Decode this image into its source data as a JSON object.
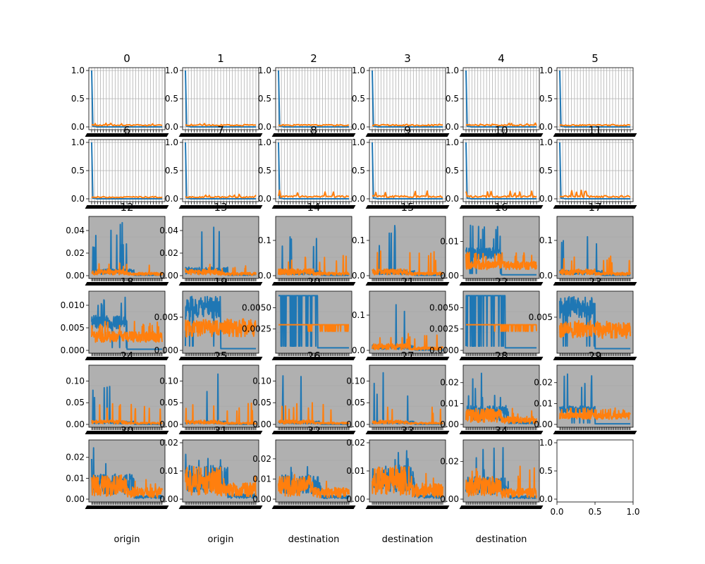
{
  "colors": {
    "series_1": "#1f77b4",
    "series_2": "#ff7f0e",
    "axes_face_gray": "#b0b0b0",
    "grid": "#b0b0b0",
    "text": "#000000"
  },
  "chart_data": {
    "type": "line",
    "layout": "6x6 grid of subplots",
    "subplots": [
      {
        "title": "0",
        "style": "grid-white",
        "ylim": [
          0,
          1
        ],
        "yticks": [
          "0.0",
          "0.5",
          "1.0"
        ],
        "shape": "spike-first",
        "s2_level": 0.03,
        "s2_peak": 0.07,
        "show_y": true
      },
      {
        "title": "1",
        "style": "grid-white",
        "ylim": [
          0,
          1
        ],
        "yticks": [
          "0.0",
          "0.5",
          "1.0"
        ],
        "shape": "spike-first",
        "s2_level": 0.03,
        "s2_peak": 0.06,
        "show_y": true
      },
      {
        "title": "2",
        "style": "grid-white",
        "ylim": [
          0,
          1
        ],
        "yticks": [
          "0.0",
          "0.5",
          "1.0"
        ],
        "shape": "spike-first",
        "s2_level": 0.03,
        "s2_peak": 0.05,
        "show_y": true
      },
      {
        "title": "3",
        "style": "grid-white",
        "ylim": [
          0,
          1
        ],
        "yticks": [
          "0.0",
          "0.5",
          "1.0"
        ],
        "shape": "spike-first",
        "s2_level": 0.03,
        "s2_peak": 0.05,
        "show_y": true
      },
      {
        "title": "4",
        "style": "grid-white",
        "ylim": [
          0,
          1
        ],
        "yticks": [
          "0.0",
          "0.5",
          "1.0"
        ],
        "shape": "spike-first",
        "s2_level": 0.03,
        "s2_peak": 0.07,
        "show_y": true
      },
      {
        "title": "5",
        "style": "grid-white",
        "ylim": [
          0,
          1
        ],
        "yticks": [
          "0.0",
          "0.5",
          "1.0"
        ],
        "shape": "spike-first",
        "s2_level": 0.03,
        "s2_peak": 0.04,
        "show_y": true
      },
      {
        "title": "6",
        "style": "grid-white",
        "ylim": [
          0,
          1
        ],
        "yticks": [
          "0.0",
          "0.5",
          "1.0"
        ],
        "shape": "spike-first",
        "s2_level": 0.03,
        "s2_peak": 0.04,
        "show_y": true
      },
      {
        "title": "7",
        "style": "grid-white",
        "ylim": [
          0,
          1
        ],
        "yticks": [
          "0.0",
          "0.5",
          "1.0"
        ],
        "shape": "spike-first",
        "s2_level": 0.03,
        "s2_peak": 0.08,
        "show_y": true
      },
      {
        "title": "8",
        "style": "grid-white",
        "ylim": [
          0,
          1
        ],
        "yticks": [
          "0.0",
          "0.5",
          "1.0"
        ],
        "shape": "spike-first",
        "s2_level": 0.04,
        "s2_peak": 0.15,
        "show_y": true
      },
      {
        "title": "9",
        "style": "grid-white",
        "ylim": [
          0,
          1
        ],
        "yticks": [
          "0.0",
          "0.5",
          "1.0"
        ],
        "shape": "spike-first",
        "s2_level": 0.04,
        "s2_peak": 0.14,
        "show_y": true
      },
      {
        "title": "10",
        "style": "grid-white",
        "ylim": [
          0,
          1
        ],
        "yticks": [
          "0.0",
          "0.5",
          "1.0"
        ],
        "shape": "spike-first",
        "s2_level": 0.04,
        "s2_peak": 0.14,
        "show_y": true
      },
      {
        "title": "11",
        "style": "grid-white",
        "ylim": [
          0,
          1
        ],
        "yticks": [
          "0.0",
          "0.5",
          "1.0"
        ],
        "shape": "spike-first",
        "s2_level": 0.04,
        "s2_peak": 0.16,
        "show_y": true
      },
      {
        "title": "12",
        "style": "gray",
        "ylim": [
          0,
          0.05
        ],
        "yticks": [
          "0.00",
          "0.02",
          "0.04"
        ],
        "shape": "noisy-spiky",
        "s1_level": 0.004,
        "s1_peak": 0.05,
        "s2_level": 0.003,
        "s2_peak": 0.012,
        "show_y": true
      },
      {
        "title": "13",
        "style": "gray",
        "ylim": [
          0,
          0.05
        ],
        "yticks": [
          "0.00",
          "0.02",
          "0.04"
        ],
        "shape": "noisy-spiky",
        "s1_level": 0.005,
        "s1_peak": 0.05,
        "s2_level": 0.003,
        "s2_peak": 0.01,
        "show_y": true
      },
      {
        "title": "14",
        "style": "gray",
        "ylim": [
          0,
          0.16
        ],
        "yticks": [
          "0.0",
          "0.1"
        ],
        "shape": "noisy-spiky",
        "s1_level": 0.01,
        "s1_peak": 0.15,
        "s2_level": 0.01,
        "s2_peak": 0.06,
        "show_y": true
      },
      {
        "title": "15",
        "style": "gray",
        "ylim": [
          0,
          0.16
        ],
        "yticks": [
          "0.0",
          "0.1"
        ],
        "shape": "noisy-spiky",
        "s1_level": 0.01,
        "s1_peak": 0.15,
        "s2_level": 0.01,
        "s2_peak": 0.07,
        "show_y": true
      },
      {
        "title": "16",
        "style": "gray",
        "ylim": [
          0,
          0.0165
        ],
        "yticks": [
          "0.00",
          "0.01"
        ],
        "shape": "band-drop",
        "s1_level": 0.0065,
        "s1_peak": 0.015,
        "s2_level": 0.003,
        "s2_peak": 0.007,
        "show_y": true
      },
      {
        "title": "17",
        "style": "gray",
        "ylim": [
          0,
          0.16
        ],
        "yticks": [
          "0.0",
          "0.1"
        ],
        "shape": "noisy-spiky",
        "s1_level": 0.01,
        "s1_peak": 0.15,
        "s2_level": 0.01,
        "s2_peak": 0.06,
        "show_y": true
      },
      {
        "title": "18",
        "style": "gray",
        "ylim": [
          0,
          0.0125
        ],
        "yticks": [
          "0.000",
          "0.005",
          "0.010"
        ],
        "shape": "band-drop",
        "s1_level": 0.0062,
        "s1_peak": 0.012,
        "s2_level": 0.003,
        "s2_peak": 0.0065,
        "show_y": true
      },
      {
        "title": "19",
        "style": "gray",
        "ylim": [
          0,
          0.0085
        ],
        "yticks": [
          "0.000",
          "0.005"
        ],
        "shape": "band-drop",
        "s1_level": 0.0065,
        "s1_peak": 0.0075,
        "s2_level": 0.0034,
        "s2_peak": 0.0045,
        "show_y": true
      },
      {
        "title": "20",
        "style": "gray",
        "ylim": [
          0,
          0.0066
        ],
        "yticks": [
          "0.0025",
          "0.0050"
        ],
        "shape": "step",
        "s1_level": 0.0064,
        "s1_peak": 0.0064,
        "s2_level": 0.003,
        "s2_peak": 0.003,
        "show_y": true
      },
      {
        "title": "21",
        "style": "gray",
        "ylim": [
          0,
          0.16
        ],
        "yticks": [
          "0.0",
          "0.1"
        ],
        "shape": "noisy-spiky",
        "s1_level": 0.01,
        "s1_peak": 0.15,
        "s2_level": 0.01,
        "s2_peak": 0.05,
        "show_y": true
      },
      {
        "title": "22",
        "style": "gray",
        "ylim": [
          0,
          0.0066
        ],
        "yticks": [
          "0.0000",
          "0.0025",
          "0.0050"
        ],
        "shape": "step",
        "s1_level": 0.0064,
        "s1_peak": 0.0064,
        "s2_level": 0.003,
        "s2_peak": 0.003,
        "show_y": true
      },
      {
        "title": "23",
        "style": "gray",
        "ylim": [
          0,
          0.0085
        ],
        "yticks": [
          "0.005"
        ],
        "shape": "band-drop",
        "s1_level": 0.0065,
        "s1_peak": 0.008,
        "s2_level": 0.003,
        "s2_peak": 0.0045,
        "show_y": true
      },
      {
        "title": "24",
        "style": "gray",
        "ylim": [
          0,
          0.13
        ],
        "yticks": [
          "0.00",
          "0.05",
          "0.10"
        ],
        "shape": "noisy-spiky",
        "s1_level": 0.005,
        "s1_peak": 0.12,
        "s2_level": 0.005,
        "s2_peak": 0.05,
        "show_y": true
      },
      {
        "title": "25",
        "style": "gray",
        "ylim": [
          0,
          0.13
        ],
        "yticks": [
          "0.00",
          "0.05",
          "0.10"
        ],
        "shape": "noisy-spiky",
        "s1_level": 0.005,
        "s1_peak": 0.12,
        "s2_level": 0.005,
        "s2_peak": 0.05,
        "show_y": true
      },
      {
        "title": "26",
        "style": "gray",
        "ylim": [
          0,
          0.13
        ],
        "yticks": [
          "0.00",
          "0.05",
          "0.10"
        ],
        "shape": "noisy-spiky",
        "s1_level": 0.005,
        "s1_peak": 0.12,
        "s2_level": 0.005,
        "s2_peak": 0.05,
        "show_y": true
      },
      {
        "title": "27",
        "style": "gray",
        "ylim": [
          0,
          0.13
        ],
        "yticks": [
          "0.00",
          "0.05",
          "0.10"
        ],
        "shape": "noisy-spiky",
        "s1_level": 0.005,
        "s1_peak": 0.12,
        "s2_level": 0.005,
        "s2_peak": 0.04,
        "show_y": true
      },
      {
        "title": "28",
        "style": "gray",
        "ylim": [
          0,
          0.027
        ],
        "yticks": [
          "0.00",
          "0.01",
          "0.02"
        ],
        "shape": "noisy-spiky",
        "s1_level": 0.006,
        "s1_peak": 0.025,
        "s2_level": 0.004,
        "s2_peak": 0.008,
        "show_y": true
      },
      {
        "title": "29",
        "style": "gray",
        "ylim": [
          0,
          0.027
        ],
        "yticks": [
          "0.00",
          "0.01",
          "0.02"
        ],
        "shape": "band-drop",
        "s1_level": 0.007,
        "s1_peak": 0.025,
        "s2_level": 0.004,
        "s2_peak": 0.008,
        "show_y": true
      },
      {
        "title": "30",
        "style": "gray",
        "ylim": [
          0,
          0.027
        ],
        "yticks": [
          "0.00",
          "0.01",
          "0.02"
        ],
        "shape": "noisy-spiky",
        "s1_level": 0.008,
        "s1_peak": 0.025,
        "s2_level": 0.006,
        "s2_peak": 0.01,
        "show_y": true
      },
      {
        "title": "31",
        "style": "gray",
        "ylim": [
          0,
          0.02
        ],
        "yticks": [
          "0.00",
          "0.01",
          "0.02"
        ],
        "shape": "noisy-spiky",
        "s1_level": 0.008,
        "s1_peak": 0.016,
        "s2_level": 0.006,
        "s2_peak": 0.012,
        "show_y": true
      },
      {
        "title": "32",
        "style": "gray",
        "ylim": [
          0,
          0.028
        ],
        "yticks": [
          "0.00",
          "0.01",
          "0.02"
        ],
        "shape": "noisy-spiky",
        "s1_level": 0.008,
        "s1_peak": 0.026,
        "s2_level": 0.006,
        "s2_peak": 0.014,
        "show_y": true
      },
      {
        "title": "33",
        "style": "gray",
        "ylim": [
          0,
          0.02
        ],
        "yticks": [
          "0.00",
          "0.01",
          "0.02"
        ],
        "shape": "noisy-spiky",
        "s1_level": 0.008,
        "s1_peak": 0.018,
        "s2_level": 0.006,
        "s2_peak": 0.012,
        "show_y": true
      },
      {
        "title": "34",
        "style": "gray",
        "ylim": [
          0,
          0.03
        ],
        "yticks": [
          "0.00",
          "0.02"
        ],
        "shape": "noisy-spiky",
        "s1_level": 0.008,
        "s1_peak": 0.028,
        "s2_level": 0.006,
        "s2_peak": 0.018,
        "show_y": true
      },
      {
        "title": "",
        "style": "empty",
        "ylim": [
          0,
          1
        ],
        "xlim": [
          0,
          1
        ],
        "yticks": [
          "0.0",
          "0.5",
          "1.0"
        ],
        "xticks": [
          "0.0",
          "0.5",
          "1.0"
        ],
        "show_y": true
      }
    ],
    "xlabels": [
      "origin",
      "origin",
      "destination",
      "destination",
      "destination"
    ]
  }
}
